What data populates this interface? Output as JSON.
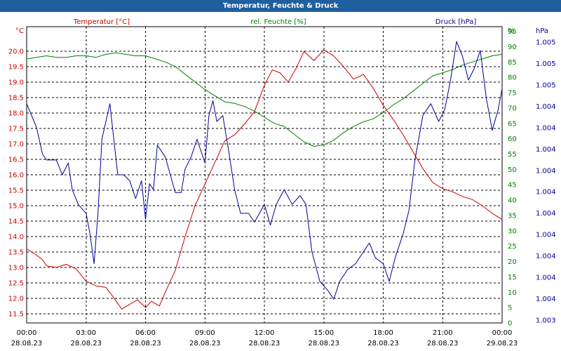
{
  "title": "Temperatur, Feuchte & Druck",
  "colors": {
    "temperature": "#cc0000",
    "humidity": "#008000",
    "pressure": "#000099",
    "titlebar": "#1f5f9f",
    "grid": "#000000"
  },
  "chart_data": {
    "type": "line",
    "title": "Temperatur, Feuchte & Druck",
    "grid": true,
    "legend": "top",
    "x_ticks": [
      {
        "time": "00:00",
        "date": "28.08.23"
      },
      {
        "time": "03:00",
        "date": "28.08.23"
      },
      {
        "time": "06:00",
        "date": "28.08.23"
      },
      {
        "time": "09:00",
        "date": "28.08.23"
      },
      {
        "time": "12:00",
        "date": "28.08.23"
      },
      {
        "time": "15:00",
        "date": "28.08.23"
      },
      {
        "time": "18:00",
        "date": "28.08.23"
      },
      {
        "time": "21:00",
        "date": "28.08.23"
      },
      {
        "time": "00:00",
        "date": "29.08.23"
      }
    ],
    "x_range_hours": [
      0,
      24
    ],
    "axes": {
      "temperature": {
        "unit": "°C",
        "range": [
          11.2,
          20.8
        ],
        "ticks": [
          "11.5",
          "12.0",
          "12.5",
          "13.0",
          "13.5",
          "14.0",
          "14.5",
          "15.0",
          "15.5",
          "16.0",
          "16.5",
          "17.0",
          "17.5",
          "18.0",
          "18.5",
          "19.0",
          "19.5",
          "20.0"
        ]
      },
      "humidity": {
        "unit": "%",
        "range": [
          0,
          96.5
        ],
        "ticks": [
          "0",
          "5",
          "10",
          "15",
          "20",
          "25",
          "30",
          "35",
          "40",
          "45",
          "50",
          "55",
          "60",
          "65",
          "70",
          "75",
          "80",
          "85",
          "90",
          "95"
        ]
      },
      "pressure": {
        "unit": "hPa",
        "range": [
          0,
          100
        ],
        "ticks": [
          "1.005",
          "1.005",
          "1.005",
          "1.004",
          "1.004",
          "1.004",
          "1.004",
          "1.004",
          "1.004",
          "1.004",
          "1.004",
          "1.004",
          "1.004",
          "1.003"
        ]
      }
    },
    "series": [
      {
        "name": "Temperatur [°C]",
        "axis": "temperature",
        "points": [
          [
            0,
            13.6
          ],
          [
            0.5,
            13.4
          ],
          [
            0.8,
            13.25
          ],
          [
            1.0,
            13.05
          ],
          [
            1.5,
            13.0
          ],
          [
            2.0,
            13.1
          ],
          [
            2.5,
            12.95
          ],
          [
            3.0,
            12.55
          ],
          [
            3.5,
            12.4
          ],
          [
            4.0,
            12.35
          ],
          [
            4.3,
            12.1
          ],
          [
            4.8,
            11.65
          ],
          [
            5.2,
            11.8
          ],
          [
            5.6,
            11.95
          ],
          [
            6.0,
            11.7
          ],
          [
            6.3,
            11.9
          ],
          [
            6.7,
            11.75
          ],
          [
            7.0,
            12.2
          ],
          [
            7.5,
            12.9
          ],
          [
            8.0,
            14.0
          ],
          [
            8.5,
            15.0
          ],
          [
            9.0,
            15.7
          ],
          [
            9.5,
            16.4
          ],
          [
            10.0,
            17.1
          ],
          [
            10.5,
            17.3
          ],
          [
            11.0,
            17.65
          ],
          [
            11.5,
            18.05
          ],
          [
            12.0,
            18.9
          ],
          [
            12.4,
            19.4
          ],
          [
            12.8,
            19.3
          ],
          [
            13.2,
            19.0
          ],
          [
            13.6,
            19.45
          ],
          [
            14.0,
            20.0
          ],
          [
            14.5,
            19.7
          ],
          [
            15.0,
            20.05
          ],
          [
            15.5,
            19.85
          ],
          [
            16.0,
            19.5
          ],
          [
            16.5,
            19.1
          ],
          [
            17.0,
            19.25
          ],
          [
            17.5,
            18.8
          ],
          [
            18.0,
            18.25
          ],
          [
            18.5,
            17.8
          ],
          [
            19.0,
            17.3
          ],
          [
            19.5,
            16.75
          ],
          [
            20.0,
            16.2
          ],
          [
            20.5,
            15.75
          ],
          [
            21.0,
            15.55
          ],
          [
            21.5,
            15.45
          ],
          [
            22.0,
            15.3
          ],
          [
            22.5,
            15.2
          ],
          [
            23.0,
            15.0
          ],
          [
            23.5,
            14.75
          ],
          [
            24.0,
            14.55
          ]
        ]
      },
      {
        "name": "rel. Feuchte [%]",
        "axis": "humidity",
        "points": [
          [
            0,
            86
          ],
          [
            0.5,
            86.5
          ],
          [
            1.0,
            87
          ],
          [
            1.5,
            86.5
          ],
          [
            2.0,
            86.5
          ],
          [
            2.5,
            87
          ],
          [
            3.0,
            87
          ],
          [
            3.5,
            86.5
          ],
          [
            4.0,
            87.5
          ],
          [
            4.5,
            88
          ],
          [
            5.0,
            87.5
          ],
          [
            5.5,
            87
          ],
          [
            6.0,
            87
          ],
          [
            6.5,
            86
          ],
          [
            7.0,
            85
          ],
          [
            7.5,
            83.5
          ],
          [
            8.0,
            81
          ],
          [
            8.5,
            78.5
          ],
          [
            9.0,
            76
          ],
          [
            9.5,
            74
          ],
          [
            10.0,
            72
          ],
          [
            10.5,
            71.5
          ],
          [
            11.0,
            70.5
          ],
          [
            11.5,
            69
          ],
          [
            12.0,
            67
          ],
          [
            12.5,
            65
          ],
          [
            13.0,
            64
          ],
          [
            13.5,
            61.5
          ],
          [
            14.0,
            59
          ],
          [
            14.5,
            57.5
          ],
          [
            15.0,
            58
          ],
          [
            15.5,
            59.5
          ],
          [
            16.0,
            62
          ],
          [
            16.5,
            64
          ],
          [
            17.0,
            65.5
          ],
          [
            17.5,
            66.5
          ],
          [
            18.0,
            68.5
          ],
          [
            18.5,
            71
          ],
          [
            19.0,
            73
          ],
          [
            19.5,
            75.5
          ],
          [
            20.0,
            78
          ],
          [
            20.5,
            80.5
          ],
          [
            21.0,
            81.5
          ],
          [
            21.5,
            82.5
          ],
          [
            22.0,
            84
          ],
          [
            22.5,
            85
          ],
          [
            23.0,
            86
          ],
          [
            23.5,
            87
          ],
          [
            24.0,
            87.5
          ]
        ]
      },
      {
        "name": "Druck [hPa]",
        "axis": "pressure",
        "points": [
          [
            0,
            74
          ],
          [
            0.5,
            66
          ],
          [
            0.8,
            57
          ],
          [
            1.0,
            55
          ],
          [
            1.5,
            55
          ],
          [
            1.8,
            50
          ],
          [
            2.1,
            54
          ],
          [
            2.3,
            45
          ],
          [
            2.6,
            40
          ],
          [
            3.0,
            37
          ],
          [
            3.2,
            30
          ],
          [
            3.4,
            20
          ],
          [
            3.6,
            37
          ],
          [
            3.8,
            62
          ],
          [
            4.0,
            68
          ],
          [
            4.2,
            74
          ],
          [
            4.4,
            62
          ],
          [
            4.6,
            50
          ],
          [
            4.9,
            50
          ],
          [
            5.2,
            48
          ],
          [
            5.5,
            42
          ],
          [
            5.8,
            48
          ],
          [
            6.0,
            35
          ],
          [
            6.2,
            47
          ],
          [
            6.4,
            45
          ],
          [
            6.6,
            60
          ],
          [
            7.0,
            56
          ],
          [
            7.5,
            44
          ],
          [
            7.8,
            44
          ],
          [
            8.0,
            52
          ],
          [
            8.3,
            56
          ],
          [
            8.6,
            62
          ],
          [
            9.0,
            54
          ],
          [
            9.2,
            70
          ],
          [
            9.4,
            75
          ],
          [
            9.6,
            68
          ],
          [
            9.9,
            70
          ],
          [
            10.2,
            58
          ],
          [
            10.5,
            45
          ],
          [
            10.8,
            37
          ],
          [
            11.2,
            37
          ],
          [
            11.5,
            34
          ],
          [
            12.0,
            40
          ],
          [
            12.3,
            33
          ],
          [
            12.6,
            40
          ],
          [
            13.0,
            45
          ],
          [
            13.4,
            40
          ],
          [
            13.8,
            43
          ],
          [
            14.1,
            40
          ],
          [
            14.4,
            24
          ],
          [
            14.8,
            14
          ],
          [
            15.2,
            11
          ],
          [
            15.5,
            8
          ],
          [
            15.8,
            14
          ],
          [
            16.2,
            18
          ],
          [
            16.6,
            20
          ],
          [
            17.0,
            24
          ],
          [
            17.3,
            27
          ],
          [
            17.6,
            22
          ],
          [
            18.0,
            20
          ],
          [
            18.3,
            14
          ],
          [
            18.6,
            22
          ],
          [
            19.0,
            30
          ],
          [
            19.3,
            38
          ],
          [
            19.6,
            55
          ],
          [
            20.0,
            70
          ],
          [
            20.4,
            74
          ],
          [
            20.8,
            68
          ],
          [
            21.1,
            72
          ],
          [
            21.4,
            82
          ],
          [
            21.7,
            95
          ],
          [
            22.0,
            90
          ],
          [
            22.3,
            82
          ],
          [
            22.6,
            86
          ],
          [
            22.9,
            92
          ],
          [
            23.2,
            76
          ],
          [
            23.5,
            65
          ],
          [
            23.8,
            72
          ],
          [
            24.0,
            79
          ]
        ]
      }
    ]
  }
}
